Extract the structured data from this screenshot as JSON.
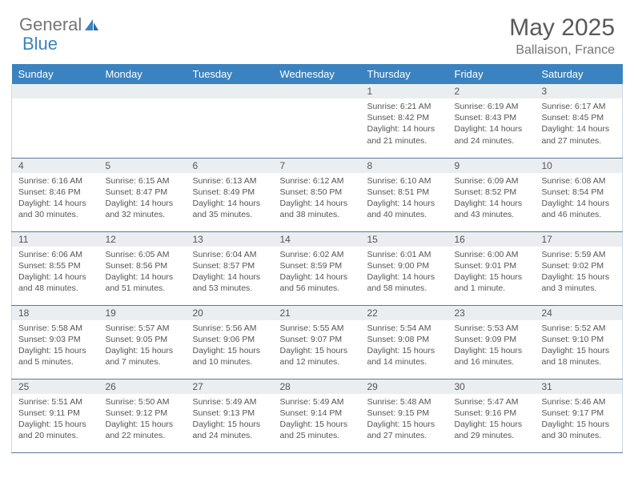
{
  "logo": {
    "word1": "General",
    "word2": "Blue"
  },
  "title": "May 2025",
  "location": "Ballaison, France",
  "colors": {
    "header_bg": "#3b83c0",
    "header_text": "#ffffff",
    "daynum_bg": "#ebeef1",
    "row_border": "#5a7a9a",
    "text": "#555555",
    "logo_gray": "#757575",
    "logo_blue": "#3b83c0"
  },
  "weekdays": [
    "Sunday",
    "Monday",
    "Tuesday",
    "Wednesday",
    "Thursday",
    "Friday",
    "Saturday"
  ],
  "weeks": [
    [
      {
        "day": "",
        "lines": []
      },
      {
        "day": "",
        "lines": []
      },
      {
        "day": "",
        "lines": []
      },
      {
        "day": "",
        "lines": []
      },
      {
        "day": "1",
        "lines": [
          "Sunrise: 6:21 AM",
          "Sunset: 8:42 PM",
          "Daylight: 14 hours",
          "and 21 minutes."
        ]
      },
      {
        "day": "2",
        "lines": [
          "Sunrise: 6:19 AM",
          "Sunset: 8:43 PM",
          "Daylight: 14 hours",
          "and 24 minutes."
        ]
      },
      {
        "day": "3",
        "lines": [
          "Sunrise: 6:17 AM",
          "Sunset: 8:45 PM",
          "Daylight: 14 hours",
          "and 27 minutes."
        ]
      }
    ],
    [
      {
        "day": "4",
        "lines": [
          "Sunrise: 6:16 AM",
          "Sunset: 8:46 PM",
          "Daylight: 14 hours",
          "and 30 minutes."
        ]
      },
      {
        "day": "5",
        "lines": [
          "Sunrise: 6:15 AM",
          "Sunset: 8:47 PM",
          "Daylight: 14 hours",
          "and 32 minutes."
        ]
      },
      {
        "day": "6",
        "lines": [
          "Sunrise: 6:13 AM",
          "Sunset: 8:49 PM",
          "Daylight: 14 hours",
          "and 35 minutes."
        ]
      },
      {
        "day": "7",
        "lines": [
          "Sunrise: 6:12 AM",
          "Sunset: 8:50 PM",
          "Daylight: 14 hours",
          "and 38 minutes."
        ]
      },
      {
        "day": "8",
        "lines": [
          "Sunrise: 6:10 AM",
          "Sunset: 8:51 PM",
          "Daylight: 14 hours",
          "and 40 minutes."
        ]
      },
      {
        "day": "9",
        "lines": [
          "Sunrise: 6:09 AM",
          "Sunset: 8:52 PM",
          "Daylight: 14 hours",
          "and 43 minutes."
        ]
      },
      {
        "day": "10",
        "lines": [
          "Sunrise: 6:08 AM",
          "Sunset: 8:54 PM",
          "Daylight: 14 hours",
          "and 46 minutes."
        ]
      }
    ],
    [
      {
        "day": "11",
        "lines": [
          "Sunrise: 6:06 AM",
          "Sunset: 8:55 PM",
          "Daylight: 14 hours",
          "and 48 minutes."
        ]
      },
      {
        "day": "12",
        "lines": [
          "Sunrise: 6:05 AM",
          "Sunset: 8:56 PM",
          "Daylight: 14 hours",
          "and 51 minutes."
        ]
      },
      {
        "day": "13",
        "lines": [
          "Sunrise: 6:04 AM",
          "Sunset: 8:57 PM",
          "Daylight: 14 hours",
          "and 53 minutes."
        ]
      },
      {
        "day": "14",
        "lines": [
          "Sunrise: 6:02 AM",
          "Sunset: 8:59 PM",
          "Daylight: 14 hours",
          "and 56 minutes."
        ]
      },
      {
        "day": "15",
        "lines": [
          "Sunrise: 6:01 AM",
          "Sunset: 9:00 PM",
          "Daylight: 14 hours",
          "and 58 minutes."
        ]
      },
      {
        "day": "16",
        "lines": [
          "Sunrise: 6:00 AM",
          "Sunset: 9:01 PM",
          "Daylight: 15 hours",
          "and 1 minute."
        ]
      },
      {
        "day": "17",
        "lines": [
          "Sunrise: 5:59 AM",
          "Sunset: 9:02 PM",
          "Daylight: 15 hours",
          "and 3 minutes."
        ]
      }
    ],
    [
      {
        "day": "18",
        "lines": [
          "Sunrise: 5:58 AM",
          "Sunset: 9:03 PM",
          "Daylight: 15 hours",
          "and 5 minutes."
        ]
      },
      {
        "day": "19",
        "lines": [
          "Sunrise: 5:57 AM",
          "Sunset: 9:05 PM",
          "Daylight: 15 hours",
          "and 7 minutes."
        ]
      },
      {
        "day": "20",
        "lines": [
          "Sunrise: 5:56 AM",
          "Sunset: 9:06 PM",
          "Daylight: 15 hours",
          "and 10 minutes."
        ]
      },
      {
        "day": "21",
        "lines": [
          "Sunrise: 5:55 AM",
          "Sunset: 9:07 PM",
          "Daylight: 15 hours",
          "and 12 minutes."
        ]
      },
      {
        "day": "22",
        "lines": [
          "Sunrise: 5:54 AM",
          "Sunset: 9:08 PM",
          "Daylight: 15 hours",
          "and 14 minutes."
        ]
      },
      {
        "day": "23",
        "lines": [
          "Sunrise: 5:53 AM",
          "Sunset: 9:09 PM",
          "Daylight: 15 hours",
          "and 16 minutes."
        ]
      },
      {
        "day": "24",
        "lines": [
          "Sunrise: 5:52 AM",
          "Sunset: 9:10 PM",
          "Daylight: 15 hours",
          "and 18 minutes."
        ]
      }
    ],
    [
      {
        "day": "25",
        "lines": [
          "Sunrise: 5:51 AM",
          "Sunset: 9:11 PM",
          "Daylight: 15 hours",
          "and 20 minutes."
        ]
      },
      {
        "day": "26",
        "lines": [
          "Sunrise: 5:50 AM",
          "Sunset: 9:12 PM",
          "Daylight: 15 hours",
          "and 22 minutes."
        ]
      },
      {
        "day": "27",
        "lines": [
          "Sunrise: 5:49 AM",
          "Sunset: 9:13 PM",
          "Daylight: 15 hours",
          "and 24 minutes."
        ]
      },
      {
        "day": "28",
        "lines": [
          "Sunrise: 5:49 AM",
          "Sunset: 9:14 PM",
          "Daylight: 15 hours",
          "and 25 minutes."
        ]
      },
      {
        "day": "29",
        "lines": [
          "Sunrise: 5:48 AM",
          "Sunset: 9:15 PM",
          "Daylight: 15 hours",
          "and 27 minutes."
        ]
      },
      {
        "day": "30",
        "lines": [
          "Sunrise: 5:47 AM",
          "Sunset: 9:16 PM",
          "Daylight: 15 hours",
          "and 29 minutes."
        ]
      },
      {
        "day": "31",
        "lines": [
          "Sunrise: 5:46 AM",
          "Sunset: 9:17 PM",
          "Daylight: 15 hours",
          "and 30 minutes."
        ]
      }
    ]
  ]
}
